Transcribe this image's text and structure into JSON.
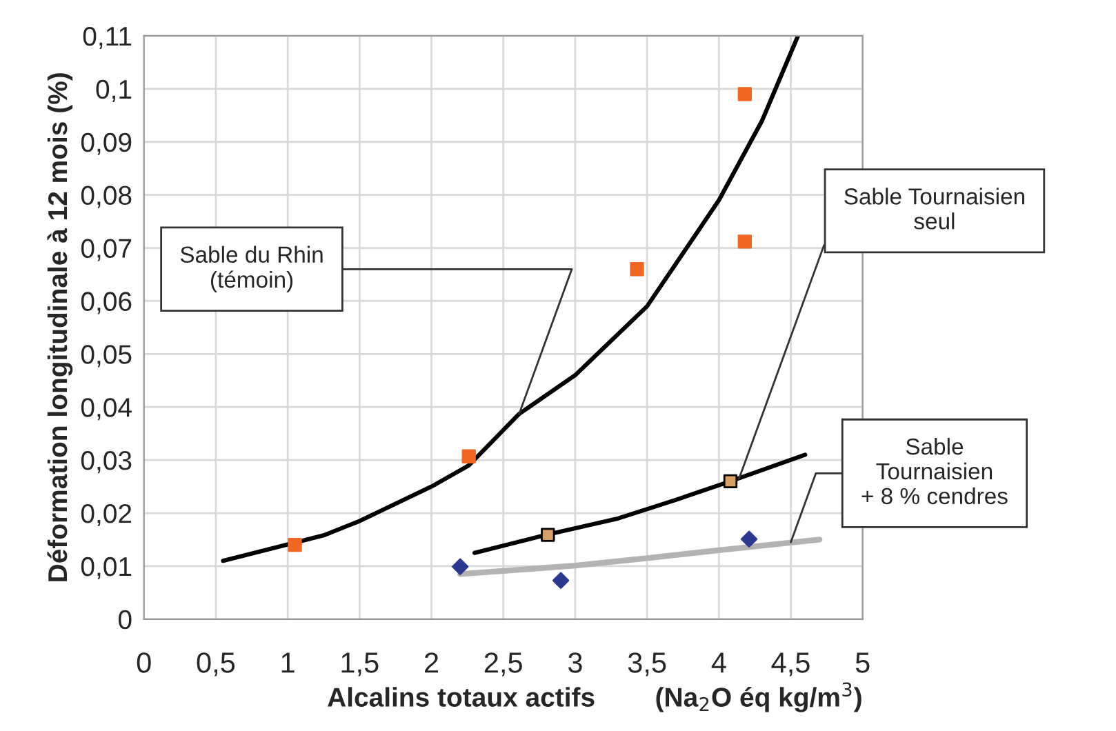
{
  "chart_data": {
    "type": "scatter",
    "xlabel": "Alcalins totaux actifs        (Na$_{2}$O éq kg/m$^{3}$)",
    "ylabel": "Déformation longitudinale à 12 mois (%)",
    "xlim": [
      0,
      5
    ],
    "ylim": [
      0,
      0.11
    ],
    "xticks": [
      0,
      {
        "value": 0.5,
        "label": "0,5"
      },
      1,
      {
        "value": 1.5,
        "label": "1,5"
      },
      2,
      {
        "value": 2.5,
        "label": "2,5"
      },
      3,
      {
        "value": 3.5,
        "label": "3,5"
      },
      4,
      {
        "value": 4.5,
        "label": "4,5"
      },
      5
    ],
    "yticks": [
      0,
      {
        "value": 0.01,
        "label": "0,01"
      },
      {
        "value": 0.02,
        "label": "0,02"
      },
      {
        "value": 0.03,
        "label": "0,03"
      },
      {
        "value": 0.04,
        "label": "0,04"
      },
      {
        "value": 0.05,
        "label": "0,05"
      },
      {
        "value": 0.06,
        "label": "0,06"
      },
      {
        "value": 0.07,
        "label": "0,07"
      },
      {
        "value": 0.08,
        "label": "0,08"
      },
      {
        "value": 0.09,
        "label": "0,09"
      },
      {
        "value": 0.1,
        "label": "0,1"
      },
      {
        "value": 0.11,
        "label": "0,11"
      }
    ],
    "grid": true,
    "series": [
      {
        "type": "line",
        "color": "#000000",
        "marker": "none",
        "x": [
          0.55,
          1.25,
          1.5,
          2.0,
          2.26,
          2.61,
          3.0,
          3.5,
          4.0,
          4.3,
          4.55
        ],
        "values": [
          0.011,
          0.0158,
          0.0185,
          0.025,
          0.029,
          0.0387,
          0.046,
          0.059,
          0.079,
          0.094,
          0.11
        ]
      },
      {
        "type": "line",
        "color": "#000000",
        "marker": "none",
        "x": [
          2.3,
          2.8,
          3.3,
          3.7,
          4.08,
          4.6
        ],
        "values": [
          0.0125,
          0.0159,
          0.019,
          0.0225,
          0.026,
          0.031
        ]
      },
      {
        "type": "line",
        "color": "#b3b3b3",
        "marker": "none",
        "x": [
          2.2,
          3.0,
          3.5,
          4.0,
          4.7
        ],
        "values": [
          0.0085,
          0.0101,
          0.0115,
          0.013,
          0.015
        ]
      },
      {
        "color": "#f26522",
        "marker": "square",
        "x": [
          1.05,
          2.26,
          3.43,
          4.18,
          4.18
        ],
        "values": [
          0.014,
          0.0307,
          0.066,
          0.099,
          0.0712
        ]
      },
      {
        "color": "#d9a066",
        "marker": "square",
        "x": [
          2.81,
          4.08
        ],
        "values": [
          0.0159,
          0.026
        ]
      },
      {
        "color": "#2b3990",
        "marker": "diamond",
        "x": [
          2.2,
          2.9,
          4.21
        ],
        "values": [
          0.0099,
          0.0073,
          0.0151
        ]
      }
    ],
    "annotations": [
      {
        "text": "Sable du Rhin\n(témoin)",
        "x": 2.61,
        "y": 0.0387
      },
      {
        "text": "Sable Tournaisien\nseul",
        "x": 4.14,
        "y": 0.0265
      },
      {
        "text": "Sable\nTournaisien\n+ 8 % cendres",
        "x": 4.5,
        "y": 0.0145
      }
    ]
  }
}
